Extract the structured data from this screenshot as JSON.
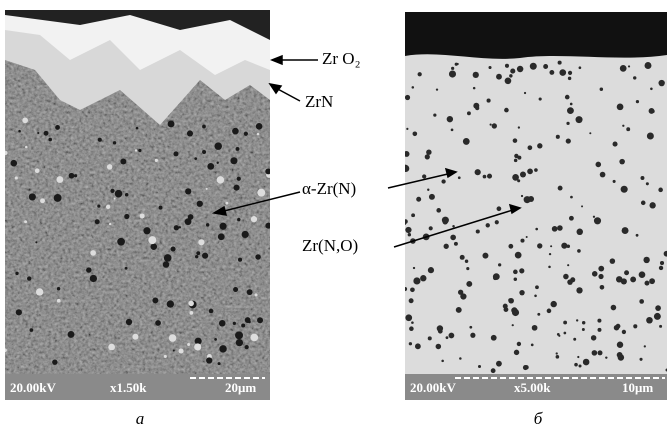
{
  "panels": [
    {
      "scale_bar": {
        "voltage": "20.00kV",
        "magnification": "x1.50k",
        "scale": "20μm"
      },
      "caption": "а"
    },
    {
      "scale_bar": {
        "voltage": "20.00kV",
        "magnification": "x5.00k",
        "scale": "10μm"
      },
      "caption": "б"
    }
  ],
  "labels": [
    "Zr O₂",
    "ZrN",
    "α-Zr(N)",
    "Zr(N,O)"
  ]
}
